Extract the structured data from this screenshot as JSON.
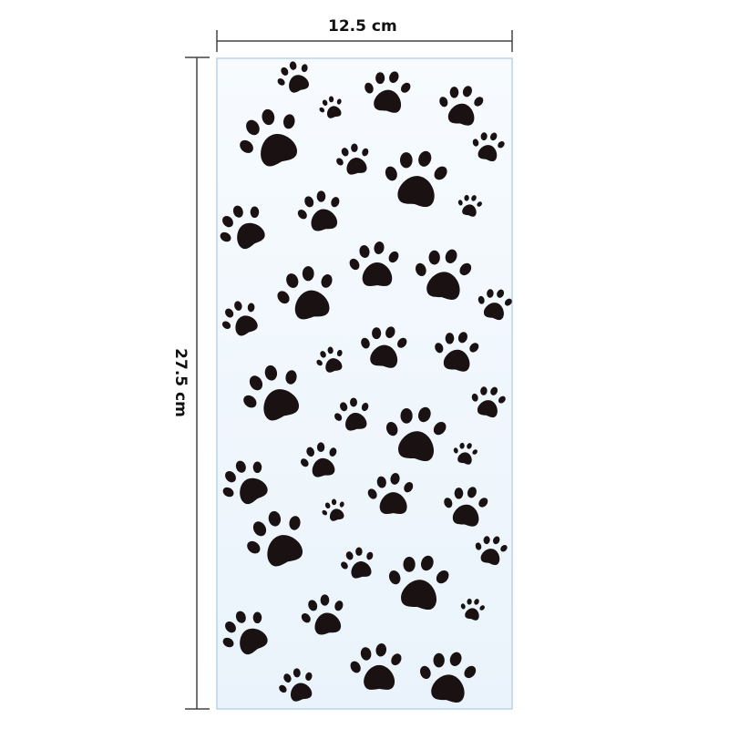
{
  "dimensions": {
    "width_label": "12.5 cm",
    "height_label": "27.5 cm"
  },
  "product": {
    "pattern": "paw-prints",
    "colors": {
      "paw": "#1a1212",
      "background_top": "#f6fafe",
      "background_bottom": "#eaf3fb",
      "border": "#b9d3ec",
      "dimension_line": "#444444"
    }
  }
}
